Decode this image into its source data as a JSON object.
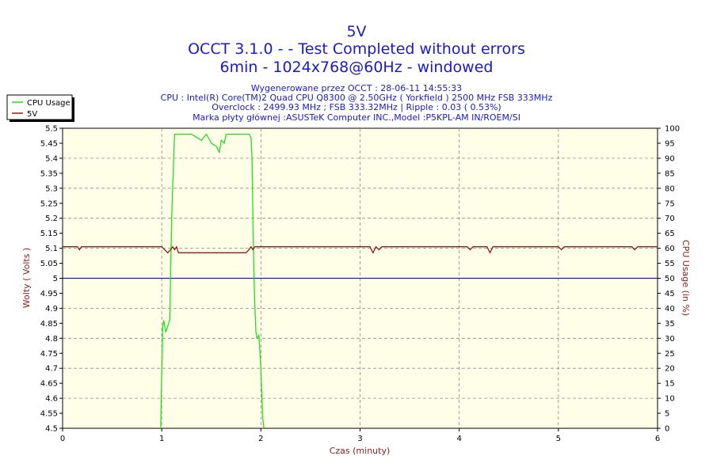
{
  "header": {
    "title_lines": [
      "5V",
      "OCCT 3.1.0 -  - Test Completed without errors",
      "6min - 1024x768@60Hz - windowed"
    ],
    "info_lines": [
      "Wygenerowane przez OCCT : 28-06-11 14:55:33",
      "CPU : Intel(R) Core(TM)2 Quad CPU Q8300 @ 2.50GHz ( Yorkfield ) 2500 MHz FSB 333MHz",
      "Overclock : 2499.93 MHz ; FSB 333.32MHz | Ripple : 0.03 ( 0.53%)",
      "Marka płyty głównej :ASUSTeK Computer INC.,Model :P5KPL-AM IN/ROEM/SI"
    ]
  },
  "chart_data": {
    "type": "line",
    "xlabel": "Czas (minuty)",
    "ylabel": "Wolty ( Volts )",
    "y2label": "CPU Usage (in %)",
    "xlim": [
      0,
      6
    ],
    "ylim": [
      4.5,
      5.5
    ],
    "y2lim": [
      0,
      100
    ],
    "x_ticks": [
      0,
      1,
      2,
      3,
      4,
      5,
      6
    ],
    "y_ticks": [
      "4.5",
      "4.55",
      "4.6",
      "4.65",
      "4.7",
      "4.75",
      "4.8",
      "4.85",
      "4.9",
      "4.95",
      "5",
      "5.05",
      "5.1",
      "5.15",
      "5.2",
      "5.25",
      "5.3",
      "5.35",
      "5.4",
      "5.45",
      "5.5"
    ],
    "y2_ticks": [
      0,
      5,
      10,
      15,
      20,
      25,
      30,
      35,
      40,
      45,
      50,
      55,
      60,
      65,
      70,
      75,
      80,
      85,
      90,
      95,
      100
    ],
    "grid": true,
    "legend_position": "top-left",
    "reference_line": {
      "y": 5.0,
      "color": "#1a1ac8"
    },
    "series": [
      {
        "name": "CPU Usage",
        "axis": "y2",
        "color": "#22dd22",
        "x": [
          0.99,
          1.0,
          1.01,
          1.02,
          1.04,
          1.06,
          1.08,
          1.1,
          1.12,
          1.13,
          1.14,
          1.16,
          1.2,
          1.25,
          1.3,
          1.35,
          1.4,
          1.45,
          1.5,
          1.55,
          1.58,
          1.6,
          1.63,
          1.65,
          1.7,
          1.75,
          1.8,
          1.85,
          1.88,
          1.9,
          1.91,
          1.92,
          1.93,
          1.94,
          1.95,
          1.96,
          1.98,
          2.0,
          2.01,
          2.02,
          2.03
        ],
        "values": [
          0,
          20,
          34,
          36,
          32,
          34,
          36,
          70,
          90,
          98,
          98,
          98,
          98,
          98,
          98,
          97,
          96,
          98,
          95,
          94,
          92,
          96,
          95,
          98,
          98,
          98,
          98,
          98,
          98,
          97,
          90,
          70,
          50,
          40,
          32,
          30,
          31,
          20,
          10,
          3,
          0
        ]
      },
      {
        "name": "5V",
        "axis": "y",
        "color": "#8b1c1c",
        "x": [
          0,
          0.15,
          0.17,
          0.19,
          1.0,
          1.03,
          1.06,
          1.09,
          1.11,
          1.13,
          1.15,
          1.17,
          1.19,
          1.85,
          1.88,
          1.9,
          1.92,
          1.94,
          3.05,
          3.1,
          3.13,
          3.16,
          3.19,
          3.22,
          4.08,
          4.11,
          4.14,
          4.28,
          4.31,
          4.34,
          5.0,
          5.03,
          5.06,
          5.74,
          5.77,
          5.8,
          6.0
        ],
        "values": [
          5.105,
          5.105,
          5.095,
          5.105,
          5.105,
          5.095,
          5.085,
          5.095,
          5.105,
          5.095,
          5.105,
          5.085,
          5.085,
          5.085,
          5.095,
          5.105,
          5.095,
          5.105,
          5.105,
          5.105,
          5.085,
          5.105,
          5.095,
          5.105,
          5.105,
          5.095,
          5.105,
          5.105,
          5.085,
          5.105,
          5.105,
          5.095,
          5.105,
          5.105,
          5.095,
          5.105,
          5.105
        ]
      }
    ]
  },
  "legend": {
    "items": [
      {
        "label": "CPU Usage",
        "color": "#22dd22"
      },
      {
        "label": "5V",
        "color": "#8b1c1c"
      }
    ]
  }
}
